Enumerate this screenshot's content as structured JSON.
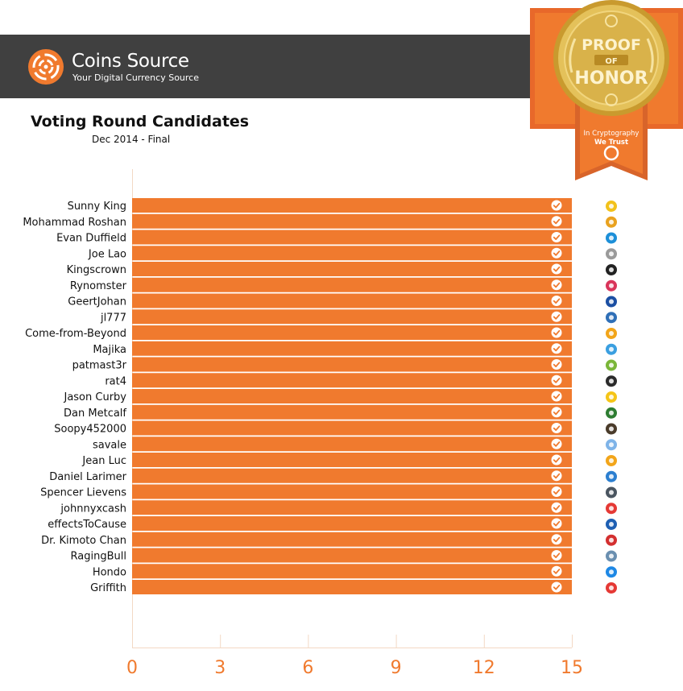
{
  "brand": {
    "name": "Coins Source",
    "tagline": "Your Digital Currency Source"
  },
  "badge": {
    "line1": "PROOF",
    "line2": "OF",
    "line3": "HONOR",
    "ribbon_text1": "In Cryptography",
    "ribbon_text2": "We Trust"
  },
  "colors": {
    "accent": "#f07a2e",
    "header_bg": "#404040",
    "gold": "#d9b24a"
  },
  "chart_data": {
    "type": "bar",
    "orientation": "horizontal",
    "title": "Voting Round Candidates",
    "subtitle": "Dec 2014 - Final",
    "xlim": [
      0,
      15
    ],
    "x_ticks": [
      0,
      3,
      6,
      9,
      12,
      15
    ],
    "grid": false,
    "categories": [
      "Sunny King",
      "Mohammad Roshan",
      "Evan Duffield",
      "Joe Lao",
      "Kingscrown",
      "Rynomster",
      "GeertJohan",
      "jl777",
      "Come-from-Beyond",
      "Majika",
      "patmast3r",
      "rat4",
      "Jason Curby",
      "Dan Metcalf",
      "Soopy452000",
      "savale",
      "Jean Luc",
      "Daniel Larimer",
      "Spencer Lievens",
      "johnnyxcash",
      "effectsToCause",
      "Dr. Kimoto Chan",
      "RagingBull",
      "Hondo",
      "Griffith"
    ],
    "values": [
      15,
      15,
      15,
      15,
      15,
      15,
      15,
      15,
      15,
      15,
      15,
      15,
      15,
      15,
      15,
      15,
      15,
      15,
      15,
      15,
      15,
      15,
      15,
      15,
      15
    ],
    "check_marks": true,
    "coin_icons": [
      {
        "icon": "coin-p-icon",
        "color": "#f2c21b"
      },
      {
        "icon": "coin-star-icon",
        "color": "#e9a21f"
      },
      {
        "icon": "coin-dash-icon",
        "color": "#1c8fd8"
      },
      {
        "icon": "coin-sigma-icon",
        "color": "#9a9a9a"
      },
      {
        "icon": "coin-bars-icon",
        "color": "#222222"
      },
      {
        "icon": "coin-s-icon",
        "color": "#d9345a"
      },
      {
        "icon": "coin-g-icon",
        "color": "#1b4fa3"
      },
      {
        "icon": "coin-swirl-icon",
        "color": "#2f6fb7"
      },
      {
        "icon": "coin-wave-icon",
        "color": "#f2a51a"
      },
      {
        "icon": "coin-a-icon",
        "color": "#3a9fe0"
      },
      {
        "icon": "coin-node-icon",
        "color": "#7ab638"
      },
      {
        "icon": "coin-b-icon",
        "color": "#2b2b2b"
      },
      {
        "icon": "coin-yellow-icon",
        "color": "#f5c518"
      },
      {
        "icon": "coin-x-icon",
        "color": "#2e7d32"
      },
      {
        "icon": "coin-ring-icon",
        "color": "#4a3b2a"
      },
      {
        "icon": "coin-script-icon",
        "color": "#7fb4e8"
      },
      {
        "icon": "coin-s-wave-icon",
        "color": "#f2a51a"
      },
      {
        "icon": "coin-bts-icon",
        "color": "#2c7fd0"
      },
      {
        "icon": "coin-sphere-icon",
        "color": "#4a5560"
      },
      {
        "icon": "coin-cross-icon",
        "color": "#e53935"
      },
      {
        "icon": "coin-v-icon",
        "color": "#1e5fb3"
      },
      {
        "icon": "coin-m-icon",
        "color": "#d32f2f"
      },
      {
        "icon": "coin-globe-icon",
        "color": "#6a8fb0"
      },
      {
        "icon": "coin-hex-icon",
        "color": "#1e88e5"
      },
      {
        "icon": "coin-w-icon",
        "color": "#e53935"
      }
    ]
  }
}
